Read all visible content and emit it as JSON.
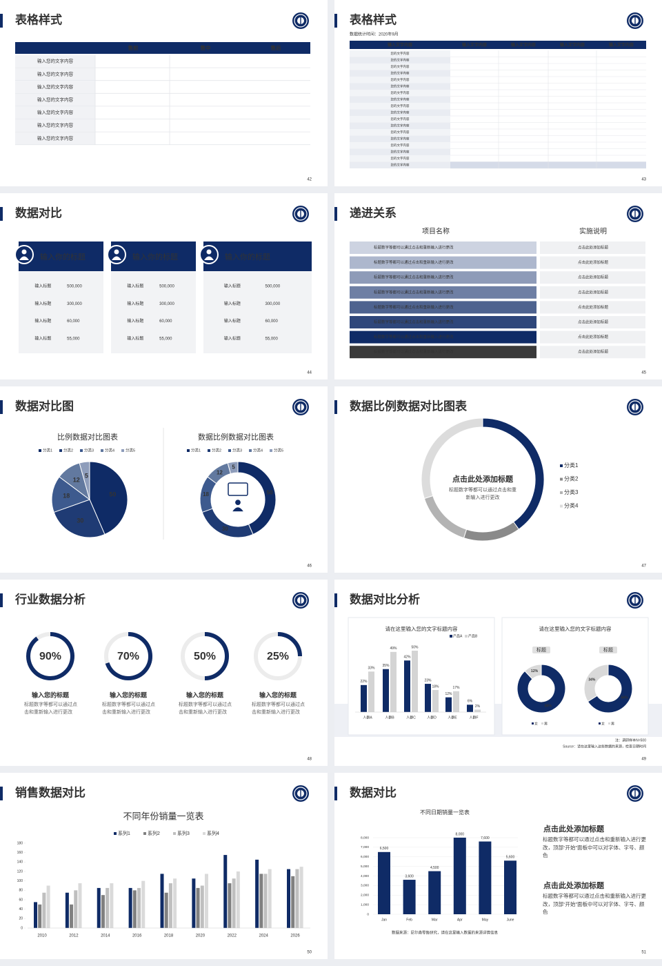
{
  "slides": [
    {
      "title": "表格样式",
      "page": 42,
      "table": {
        "columns": [
          "售前",
          "售中",
          "售后"
        ],
        "rows": [
          "输入您的文字内容",
          "输入您的文字内容",
          "输入您的文字内容",
          "输入您的文字内容",
          "输入您的文字内容",
          "输入您的文字内容",
          "输入您的文字内容"
        ]
      }
    },
    {
      "title": "表格样式",
      "subtitle": "数据统计时间：2020年9月",
      "page": 43,
      "table": {
        "columns": [
          "输入文字内容",
          "输入文字内容",
          "输入文字内容",
          "输入文字内容",
          "输入文字内容"
        ],
        "rows": [
          "您的文字内容",
          "您的文字内容",
          "您的文字内容",
          "您的文字内容",
          "您的文字内容",
          "您的文字内容",
          "您的文字内容",
          "您的文字内容",
          "您的文字内容",
          "您的文字内容",
          "您的文字内容",
          "您的文字内容",
          "您的文字内容",
          "您的文字内容",
          "您的文字内容",
          "您的文字内容",
          "您的文字内容",
          "您的文字内容"
        ]
      }
    },
    {
      "title": "数据对比",
      "page": 44,
      "cards": [
        {
          "title": "输入你的标题",
          "rows": [
            {
              "label": "输入标题",
              "value": "500,000"
            },
            {
              "label": "输入标题",
              "value": "300,000"
            },
            {
              "label": "输入标题",
              "value": "60,000"
            },
            {
              "label": "输入标题",
              "value": "55,000"
            }
          ]
        },
        {
          "title": "输入你的标题",
          "rows": [
            {
              "label": "输入标题",
              "value": "500,000"
            },
            {
              "label": "输入标题",
              "value": "300,000"
            },
            {
              "label": "输入标题",
              "value": "60,000"
            },
            {
              "label": "输入标题",
              "value": "55,000"
            }
          ]
        },
        {
          "title": "输入你的标题",
          "rows": [
            {
              "label": "输入标题",
              "value": "500,000"
            },
            {
              "label": "输入标题",
              "value": "300,000"
            },
            {
              "label": "输入标题",
              "value": "60,000"
            },
            {
              "label": "输入标题",
              "value": "55,000"
            }
          ]
        }
      ]
    },
    {
      "title": "递进关系",
      "page": 45,
      "columns": [
        "项目名称",
        "实施说明"
      ],
      "rows": [
        {
          "item": "标题数字等都可以通过点击和重新输入进行更改",
          "note": "点击此处添加标题"
        },
        {
          "item": "标题数字等都可以通过点击和重新输入进行更改",
          "note": "点击此处添加标题"
        },
        {
          "item": "标题数字等都可以通过点击和重新输入进行更改",
          "note": "点击此处添加标题"
        },
        {
          "item": "标题数字等都可以通过点击和重新输入进行更改",
          "note": "点击此处添加标题"
        },
        {
          "item": "标题数字等都可以通过点击和重新输入进行更改",
          "note": "点击此处添加标题"
        },
        {
          "item": "标题数字等都可以通过点击和重新输入进行更改",
          "note": "点击此处添加标题"
        },
        {
          "item": "标题数字等都可以通过点击和重新输入进行更改",
          "note": "点击此处添加标题"
        },
        {
          "item": "标题数字等都可以通过点击和重新输入进行更改",
          "note": "点击此处添加标题"
        }
      ]
    },
    {
      "title": "数据对比图",
      "page": 46,
      "charts": [
        {
          "type": "pie",
          "title": "比例数据对比图表",
          "categories": [
            "分类1",
            "分类2",
            "分类3",
            "分类4",
            "分类5"
          ],
          "values": [
            50,
            30,
            18,
            12,
            5
          ],
          "colors": [
            "#0f2b66",
            "#1f3b74",
            "#3d5a8e",
            "#62799f",
            "#8e9dbb"
          ]
        },
        {
          "type": "donut",
          "title": "数据比例数据对比图表",
          "categories": [
            "分类1",
            "分类2",
            "分类3",
            "分类4",
            "分类5"
          ],
          "values": [
            50,
            30,
            18,
            12,
            5
          ],
          "colors": [
            "#0f2b66",
            "#1f3b74",
            "#3d5a8e",
            "#62799f",
            "#8e9dbb"
          ]
        }
      ]
    },
    {
      "title": "数据比例数据对比图表",
      "page": 47,
      "chart": {
        "type": "donut",
        "title": "点击此处添加标题",
        "text": "标题数字等都可以通过点击和重新输入进行更改",
        "categories": [
          "分类1",
          "分类2",
          "分类3",
          "分类4"
        ],
        "values": [
          40,
          15,
          15,
          30
        ],
        "colors": [
          "#0f2b66",
          "#8a8a8a",
          "#b3b3b3",
          "#dcdcdc"
        ]
      }
    },
    {
      "title": "行业数据分析",
      "page": 48,
      "color": "#0f2b66",
      "rings": [
        {
          "value": 90,
          "value_label": "90%",
          "title": "输入您的标题",
          "text": "标题数字等都可以通过点击和重新输入进行更改"
        },
        {
          "value": 70,
          "value_label": "70%",
          "title": "输入您的标题",
          "text": "标题数字等都可以通过点击和重新输入进行更改"
        },
        {
          "value": 50,
          "value_label": "50%",
          "title": "输入您的标题",
          "text": "标题数字等都可以通过点击和重新输入进行更改"
        },
        {
          "value": 25,
          "value_label": "25%",
          "title": "输入您的标题",
          "text": "标题数字等都可以通过点击和重新输入进行更改"
        }
      ]
    },
    {
      "title": "数据对比分析",
      "page": 49,
      "note": "注：调研样本N=500",
      "source": "Source：请在这里输入这些数据的来源，检查日期时间",
      "charts": [
        {
          "type": "bar",
          "title": "请在这里输入您的文字标题内容",
          "categories": [
            "人群A",
            "人群B",
            "人群C",
            "人群D",
            "人群E",
            "人群F"
          ],
          "series": [
            {
              "name": "产品A",
              "color": "#0f2b66",
              "values": [
                22,
                35,
                42,
                23,
                12,
                6
              ],
              "value_labels": [
                "22%",
                "35%",
                "42%",
                "23%",
                "12%",
                "6%"
              ]
            },
            {
              "name": "产品B",
              "color": "#d4d4d4",
              "values": [
                33,
                49,
                50,
                18,
                17,
                2
              ],
              "value_labels": [
                "33%",
                "49%",
                "50%",
                "18%",
                "17%",
                "2%"
              ]
            }
          ]
        },
        {
          "type": "donut",
          "title": "请在这里输入您的文字标题内容",
          "legend": [
            "女",
            "男"
          ],
          "colors": [
            "#0f2b66",
            "#d9d9d9"
          ],
          "items": [
            {
              "label": "标题",
              "values": [
                88,
                12
              ],
              "value_labels": [
                "88%",
                "12%"
              ]
            },
            {
              "label": "标题",
              "values": [
                66,
                34
              ],
              "value_labels": [
                "66%",
                "34%"
              ]
            }
          ]
        }
      ]
    },
    {
      "title": "销售数据对比",
      "page": 50,
      "chart": {
        "type": "bar",
        "title": "不同年份销量一览表",
        "categories": [
          "2010",
          "2012",
          "2014",
          "2016",
          "2018",
          "2020",
          "2022",
          "2024",
          "2026"
        ],
        "series": [
          {
            "name": "系列1",
            "color": "#0f2b66",
            "values": [
              55,
              75,
              85,
              85,
              115,
              105,
              155,
              145,
              125
            ]
          },
          {
            "name": "系列2",
            "color": "#808080",
            "values": [
              50,
              50,
              70,
              80,
              75,
              85,
              95,
              115,
              110
            ]
          },
          {
            "name": "系列3",
            "color": "#bfbfbf",
            "values": [
              75,
              80,
              85,
              85,
              95,
              90,
              105,
              115,
              125
            ]
          },
          {
            "name": "系列4",
            "color": "#dadada",
            "values": [
              90,
              95,
              95,
              100,
              105,
              115,
              120,
              125,
              130
            ]
          }
        ],
        "ylim": [
          0,
          180
        ],
        "yticks": [
          0,
          20,
          40,
          60,
          80,
          100,
          120,
          140,
          160,
          180
        ]
      }
    },
    {
      "title": "数据对比",
      "page": 51,
      "chart": {
        "type": "bar",
        "title": "不同日期销量一览表",
        "categories": [
          "Jan",
          "Feb",
          "Mar",
          "Apr",
          "May",
          "June"
        ],
        "values": [
          6500,
          3600,
          4500,
          8000,
          7600,
          5600
        ],
        "value_labels": [
          "6,500",
          "3,600",
          "4,500",
          "8,000",
          "7,600",
          "5,600"
        ],
        "color": "#0f2b66",
        "ylim": [
          0,
          8000
        ],
        "yticks": [
          0,
          {
            "value": 1000,
            "label": "1,000"
          },
          {
            "value": 2000,
            "label": "2,000"
          },
          {
            "value": 3000,
            "label": "3,000"
          },
          {
            "value": 4000,
            "label": "4,000"
          },
          {
            "value": 5000,
            "label": "5,000"
          },
          {
            "value": 6000,
            "label": "6,000"
          },
          {
            "value": 7000,
            "label": "7,000"
          },
          {
            "value": 8000,
            "label": "8,000"
          }
        ],
        "source": "数据来源：尼尔森零售研究，请在这里输入数据的来源详情信息"
      },
      "notes": [
        {
          "title": "点击此处添加标题",
          "text": "标题数字等都可以通过点击和重新输入进行更改，顶部“开始”面板中可以对字体、字号、颜色"
        },
        {
          "title": "点击此处添加标题",
          "text": "标题数字等都可以通过点击和重新输入进行更改，顶部“开始”面板中可以对字体、字号、颜色"
        }
      ]
    }
  ]
}
